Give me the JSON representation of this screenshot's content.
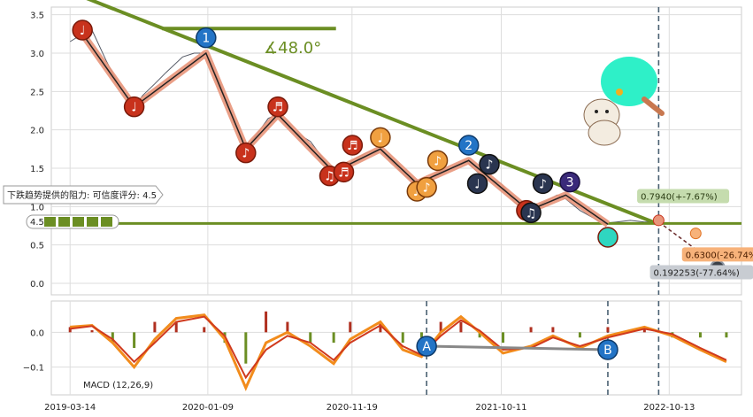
{
  "chart_data": {
    "type": "line",
    "price_panel": {
      "ylim": [
        -0.15,
        3.6
      ],
      "y_ticks": [
        "0.0",
        "0.5",
        "1.0",
        "1.5",
        "2.0",
        "2.5",
        "3.0",
        "3.5"
      ],
      "price_series": [
        [
          "2019-03-14",
          3.15
        ],
        [
          "2019-04-10",
          3.25
        ],
        [
          "2019-05-01",
          3.3
        ],
        [
          "2019-06-01",
          2.9
        ],
        [
          "2019-07-01",
          2.55
        ],
        [
          "2019-08-01",
          2.3
        ],
        [
          "2019-08-20",
          2.45
        ],
        [
          "2019-09-15",
          2.6
        ],
        [
          "2019-10-10",
          2.75
        ],
        [
          "2019-11-15",
          2.95
        ],
        [
          "2019-12-10",
          3.0
        ],
        [
          "2020-01-05",
          3.0
        ],
        [
          "2020-02-01",
          2.65
        ],
        [
          "2020-03-01",
          2.2
        ],
        [
          "2020-04-01",
          1.75
        ],
        [
          "2020-04-20",
          1.9
        ],
        [
          "2020-05-20",
          2.15
        ],
        [
          "2020-06-10",
          2.2
        ],
        [
          "2020-07-10",
          2.0
        ],
        [
          "2020-08-20",
          1.85
        ],
        [
          "2020-09-20",
          1.6
        ],
        [
          "2020-10-10",
          1.45
        ],
        [
          "2020-11-01",
          1.5
        ],
        [
          "2020-11-20",
          1.6
        ],
        [
          "2020-12-20",
          1.7
        ],
        [
          "2021-01-20",
          1.75
        ],
        [
          "2021-02-20",
          1.55
        ],
        [
          "2021-03-15",
          1.4
        ],
        [
          "2021-04-10",
          1.3
        ],
        [
          "2021-05-05",
          1.35
        ],
        [
          "2021-05-25",
          1.45
        ],
        [
          "2021-06-25",
          1.5
        ],
        [
          "2021-07-25",
          1.6
        ],
        [
          "2021-08-20",
          1.45
        ],
        [
          "2021-09-15",
          1.35
        ],
        [
          "2021-10-11",
          1.3
        ],
        [
          "2021-11-10",
          1.05
        ],
        [
          "2021-12-10",
          0.95
        ],
        [
          "2022-01-10",
          1.05
        ],
        [
          "2022-02-10",
          1.15
        ],
        [
          "2022-03-01",
          1.1
        ],
        [
          "2022-04-01",
          0.95
        ],
        [
          "2022-05-01",
          0.85
        ],
        [
          "2022-05-20",
          0.78
        ],
        [
          "2022-06-20",
          0.8
        ],
        [
          "2022-07-20",
          0.82
        ],
        [
          "2022-08-20",
          0.8
        ],
        [
          "2022-09-10",
          0.8
        ],
        [
          "2022-10-01",
          0.8
        ]
      ],
      "wave_points": [
        [
          "2019-04-10",
          3.25
        ],
        [
          "2019-08-01",
          2.3
        ],
        [
          "2020-01-05",
          3.0
        ],
        [
          "2020-04-01",
          1.75
        ],
        [
          "2020-06-10",
          2.2
        ],
        [
          "2020-10-10",
          1.45
        ],
        [
          "2021-01-20",
          1.75
        ],
        [
          "2021-04-10",
          1.3
        ],
        [
          "2021-08-01",
          1.6
        ],
        [
          "2021-12-10",
          0.95
        ],
        [
          "2022-03-01",
          1.15
        ],
        [
          "2022-06-01",
          0.77
        ]
      ],
      "downtrend_line": [
        [
          "2019-03-14",
          3.8
        ],
        [
          "2022-09-20",
          0.77
        ]
      ],
      "support_line_y": 0.78,
      "angle_label": "∡48.0°",
      "resistance_note": "下跌趋势提供的阻力: 可信度评分: 4.5",
      "rating_label": "4.5",
      "rating_stars": 5,
      "forecast_end_date": "2023-02-15",
      "vline_date": "2022-09-20",
      "targets": [
        {
          "label": "0.7940(+-7.67%)",
          "y": 0.79,
          "bg": "#c5dcae",
          "fg": "#2b3d14"
        },
        {
          "label": "0.6300(-26.74%)",
          "y": 0.63,
          "bg": "#f7b27a",
          "fg": "#4a1d00"
        },
        {
          "label": "0.192253(-77.64%)",
          "y": 0.19,
          "bg": "#c8ccd2",
          "fg": "#222222"
        }
      ],
      "markers": [
        {
          "date": "2019-04-10",
          "y": 3.3,
          "text": "♩",
          "style": "red"
        },
        {
          "date": "2019-08-01",
          "y": 2.3,
          "text": "♩",
          "style": "red"
        },
        {
          "date": "2020-01-05",
          "y": 3.2,
          "text": "1",
          "style": "blue"
        },
        {
          "date": "2020-04-01",
          "y": 1.7,
          "text": "♪",
          "style": "red"
        },
        {
          "date": "2020-06-10",
          "y": 2.3,
          "text": "♬",
          "style": "red"
        },
        {
          "date": "2020-10-01",
          "y": 1.4,
          "text": "♫",
          "style": "red"
        },
        {
          "date": "2020-11-01",
          "y": 1.45,
          "text": "♬",
          "style": "red"
        },
        {
          "date": "2020-11-20",
          "y": 1.8,
          "text": "♬",
          "style": "red"
        },
        {
          "date": "2021-01-20",
          "y": 1.9,
          "text": "♩",
          "style": "orange"
        },
        {
          "date": "2021-04-10",
          "y": 1.2,
          "text": "♪",
          "style": "orange"
        },
        {
          "date": "2021-05-01",
          "y": 1.25,
          "text": "♪",
          "style": "orange"
        },
        {
          "date": "2021-05-25",
          "y": 1.6,
          "text": "♪",
          "style": "orange"
        },
        {
          "date": "2021-08-01",
          "y": 1.8,
          "text": "2",
          "style": "blue"
        },
        {
          "date": "2021-08-20",
          "y": 1.3,
          "text": "♩",
          "style": "navy"
        },
        {
          "date": "2021-09-15",
          "y": 1.55,
          "text": "♪",
          "style": "navy"
        },
        {
          "date": "2021-12-05",
          "y": 0.95,
          "text": "♪",
          "style": "red"
        },
        {
          "date": "2021-12-15",
          "y": 0.92,
          "text": "♫",
          "style": "navy"
        },
        {
          "date": "2022-01-10",
          "y": 1.3,
          "text": "♪",
          "style": "navy"
        },
        {
          "date": "2022-03-10",
          "y": 1.32,
          "text": "3",
          "style": "purple"
        },
        {
          "date": "2022-06-01",
          "y": 0.6,
          "text": "",
          "style": "teal"
        }
      ]
    },
    "macd_panel": {
      "label": "MACD (12,26,9)",
      "ylim": [
        -0.18,
        0.09
      ],
      "y_ticks": [
        "0.0",
        "−0.1"
      ],
      "macd": [
        [
          "2019-03-14",
          0.015
        ],
        [
          "2019-05-01",
          0.02
        ],
        [
          "2019-06-15",
          -0.03
        ],
        [
          "2019-08-01",
          -0.1
        ],
        [
          "2019-09-15",
          -0.02
        ],
        [
          "2019-11-01",
          0.04
        ],
        [
          "2020-01-01",
          0.05
        ],
        [
          "2020-02-15",
          -0.02
        ],
        [
          "2020-04-01",
          -0.16
        ],
        [
          "2020-05-15",
          -0.03
        ],
        [
          "2020-07-01",
          0.0
        ],
        [
          "2020-08-20",
          -0.04
        ],
        [
          "2020-10-10",
          -0.09
        ],
        [
          "2020-11-15",
          -0.02
        ],
        [
          "2021-01-20",
          0.03
        ],
        [
          "2021-03-10",
          -0.05
        ],
        [
          "2021-04-20",
          -0.07
        ],
        [
          "2021-06-01",
          0.0
        ],
        [
          "2021-07-15",
          0.045
        ],
        [
          "2021-08-25",
          0.0
        ],
        [
          "2021-10-15",
          -0.06
        ],
        [
          "2021-12-15",
          -0.04
        ],
        [
          "2022-02-01",
          -0.01
        ],
        [
          "2022-04-01",
          -0.045
        ],
        [
          "2022-06-01",
          -0.01
        ],
        [
          "2022-08-20",
          0.015
        ],
        [
          "2022-10-20",
          -0.01
        ],
        [
          "2022-12-20",
          -0.05
        ],
        [
          "2023-02-15",
          -0.085
        ]
      ],
      "signal": [
        [
          "2019-03-14",
          0.01
        ],
        [
          "2019-05-01",
          0.018
        ],
        [
          "2019-06-15",
          -0.02
        ],
        [
          "2019-08-01",
          -0.085
        ],
        [
          "2019-09-15",
          -0.03
        ],
        [
          "2019-11-01",
          0.03
        ],
        [
          "2020-01-01",
          0.045
        ],
        [
          "2020-02-15",
          -0.01
        ],
        [
          "2020-04-01",
          -0.13
        ],
        [
          "2020-05-15",
          -0.05
        ],
        [
          "2020-07-01",
          -0.01
        ],
        [
          "2020-08-20",
          -0.03
        ],
        [
          "2020-10-10",
          -0.08
        ],
        [
          "2020-11-15",
          -0.03
        ],
        [
          "2021-01-20",
          0.02
        ],
        [
          "2021-03-10",
          -0.04
        ],
        [
          "2021-04-20",
          -0.065
        ],
        [
          "2021-06-01",
          -0.01
        ],
        [
          "2021-07-15",
          0.035
        ],
        [
          "2021-08-25",
          0.005
        ],
        [
          "2021-10-15",
          -0.05
        ],
        [
          "2021-12-15",
          -0.045
        ],
        [
          "2022-02-01",
          -0.015
        ],
        [
          "2022-04-01",
          -0.04
        ],
        [
          "2022-06-01",
          -0.015
        ],
        [
          "2022-08-20",
          0.01
        ],
        [
          "2022-10-20",
          -0.005
        ],
        [
          "2022-12-20",
          -0.045
        ],
        [
          "2023-02-15",
          -0.08
        ]
      ],
      "points": [
        {
          "date": "2021-05-01",
          "y": -0.04,
          "text": "A"
        },
        {
          "date": "2022-06-01",
          "y": -0.05,
          "text": "B"
        }
      ],
      "vline_dates": [
        "2021-05-01",
        "2022-06-01",
        "2022-09-20"
      ]
    },
    "x_ticks": [
      {
        "date": "2019-03-14",
        "label": "2019-03-14"
      },
      {
        "date": "2020-01-09",
        "label": "2020-01-09"
      },
      {
        "date": "2020-11-19",
        "label": "2020-11-19"
      },
      {
        "date": "2021-10-11",
        "label": "2021-10-11"
      },
      {
        "date": "2022-10-13",
        "label": "2022-10-13"
      }
    ],
    "colors": {
      "price": "#555a66",
      "wave_glow": "#e8957a",
      "wave": "#222222",
      "trend": "#6b8e23",
      "macd": "#f28c1c",
      "signal": "#d03a1e",
      "marker_red": "#c8321c",
      "marker_blue": "#2374c6",
      "marker_orange": "#f0a040",
      "marker_navy": "#2a3550",
      "marker_purple": "#3a2a7a",
      "marker_teal": "#2fd6c0",
      "grid": "#dddddd",
      "vline": "#4a6072"
    }
  }
}
